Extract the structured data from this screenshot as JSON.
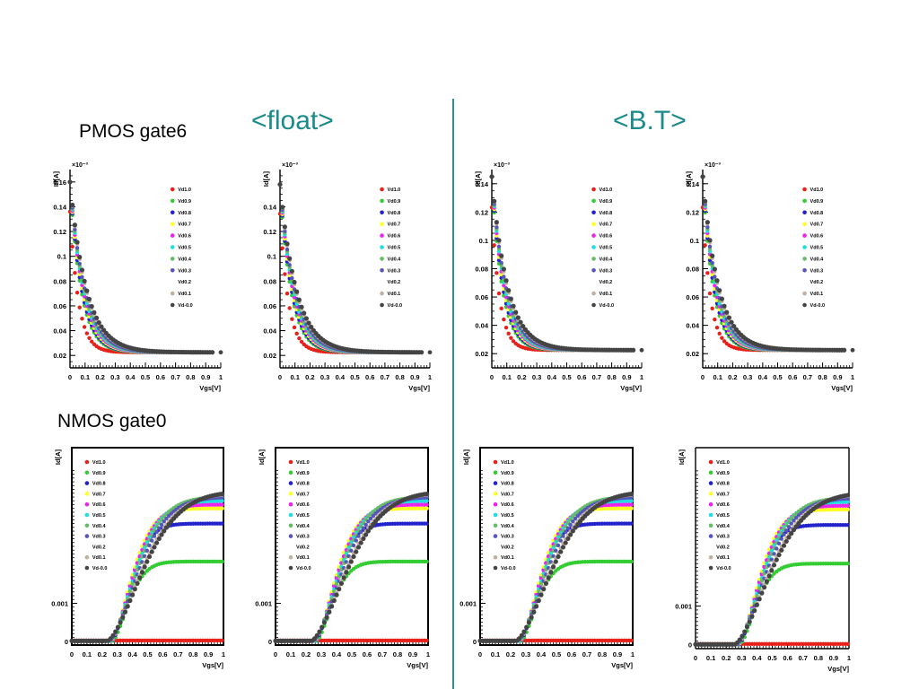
{
  "titles": {
    "left": "<float>",
    "right": "<B.T>"
  },
  "sections": {
    "pmos": "PMOS gate6",
    "nmos": "NMOS gate0"
  },
  "colors": {
    "title": "#1a8a8a",
    "divider": "#2e8f8f"
  },
  "chart_data": [
    {
      "id": "pmos-float-1",
      "type": "scatter",
      "device": "PMOS",
      "group": "<float>",
      "xlabel": "Vgs[V]",
      "ylabel": "Id[A]",
      "exponent": "×10⁻³",
      "xlim": [
        0,
        1
      ],
      "ylim": [
        0.01,
        0.17
      ],
      "xticks": [
        "0",
        "0.1",
        "0.2",
        "0.3",
        "0.4",
        "0.5",
        "0.6",
        "0.7",
        "0.8",
        "0.9",
        "1"
      ],
      "yticks": [
        "0.02",
        "0.04",
        "0.06",
        "0.08",
        "0.1",
        "0.12",
        "0.14",
        "0.16"
      ],
      "ytick_values": [
        0.02,
        0.04,
        0.06,
        0.08,
        0.1,
        0.12,
        0.14,
        0.16
      ],
      "legend": [
        "Vd1.0",
        "Vd0.9",
        "Vd0.8",
        "Vd0.7",
        "Vd0.6",
        "Vd0.5",
        "Vd0.4",
        "Vd0.3",
        "Vd0.2",
        "Vd0.1",
        "Vd-0.0"
      ],
      "legend_position": "top-right",
      "frame": false,
      "series_colors": [
        "#e8201a",
        "#33cc33",
        "#2222cc",
        "#ffff22",
        "#ee22ee",
        "#22dddd",
        "#66bb66",
        "#5555bb",
        "#ffffff",
        "#c0b0a0",
        "#444444"
      ],
      "curve": {
        "model": "pmos",
        "floor": 0.0225,
        "peak": 0.16,
        "tau": 0.07,
        "vstart": 0,
        "vend": 0.95,
        "extra_end_point": 1.0
      }
    },
    {
      "id": "pmos-float-2",
      "type": "scatter",
      "device": "PMOS",
      "group": "<float>",
      "xlabel": "Vgs[V]",
      "ylabel": "Id[A]",
      "exponent": "×10⁻³",
      "xlim": [
        0,
        1
      ],
      "ylim": [
        0.01,
        0.17
      ],
      "xticks": [
        "0",
        "0.1",
        "0.2",
        "0.3",
        "0.4",
        "0.5",
        "0.6",
        "0.7",
        "0.8",
        "0.9",
        "1"
      ],
      "yticks": [
        "0.02",
        "0.04",
        "0.06",
        "0.08",
        "0.1",
        "0.12",
        "0.14"
      ],
      "ytick_values": [
        0.02,
        0.04,
        0.06,
        0.08,
        0.1,
        0.12,
        0.14
      ],
      "legend": [
        "Vd1.0",
        "Vd0.9",
        "Vd0.8",
        "Vd0.7",
        "Vd0.6",
        "Vd0.5",
        "Vd0.4",
        "Vd0.3",
        "Vd0.2",
        "Vd0.1",
        "Vd-0.0"
      ],
      "legend_position": "top-right",
      "frame": false,
      "series_colors": [
        "#e8201a",
        "#33cc33",
        "#2222cc",
        "#ffff22",
        "#ee22ee",
        "#22dddd",
        "#66bb66",
        "#5555bb",
        "#ffffff",
        "#c0b0a0",
        "#444444"
      ],
      "curve": {
        "model": "pmos",
        "floor": 0.0225,
        "peak": 0.158,
        "tau": 0.07,
        "vstart": 0,
        "vend": 0.95,
        "extra_end_point": 1.0
      }
    },
    {
      "id": "pmos-bt-1",
      "type": "scatter",
      "device": "PMOS",
      "group": "<B.T>",
      "xlabel": "Vgs[V]",
      "ylabel": "Id[A]",
      "exponent": "×10⁻³",
      "xlim": [
        0,
        1
      ],
      "ylim": [
        0.01,
        0.15
      ],
      "xticks": [
        "0",
        "0.1",
        "0.2",
        "0.3",
        "0.4",
        "0.5",
        "0.6",
        "0.7",
        "0.8",
        "0.9",
        "1"
      ],
      "yticks": [
        "0.02",
        "0.04",
        "0.06",
        "0.08",
        "0.1",
        "0.12",
        "0.14"
      ],
      "ytick_values": [
        0.02,
        0.04,
        0.06,
        0.08,
        0.1,
        0.12,
        0.14
      ],
      "legend": [
        "Vd1.0",
        "Vd0.9",
        "Vd0.8",
        "Vd0.7",
        "Vd0.6",
        "Vd0.5",
        "Vd0.4",
        "Vd0.3",
        "Vd0.2",
        "Vd0.1",
        "Vd-0.0"
      ],
      "legend_position": "top-right",
      "frame": false,
      "series_colors": [
        "#e8201a",
        "#33cc33",
        "#2222cc",
        "#ffff22",
        "#ee22ee",
        "#22dddd",
        "#66bb66",
        "#5555bb",
        "#ffffff",
        "#c0b0a0",
        "#444444"
      ],
      "curve": {
        "model": "pmos",
        "floor": 0.0225,
        "peak": 0.145,
        "tau": 0.065,
        "vstart": 0,
        "vend": 0.95,
        "extra_end_point": 1.0
      }
    },
    {
      "id": "pmos-bt-2",
      "type": "scatter",
      "device": "PMOS",
      "group": "<B.T>",
      "xlabel": "Vgs[V]",
      "ylabel": "Id[A]",
      "exponent": "×10⁻³",
      "xlim": [
        0,
        1
      ],
      "ylim": [
        0.01,
        0.15
      ],
      "xticks": [
        "0",
        "0.1",
        "0.2",
        "0.3",
        "0.4",
        "0.5",
        "0.6",
        "0.7",
        "0.8",
        "0.9",
        "1"
      ],
      "yticks": [
        "0.02",
        "0.04",
        "0.06",
        "0.08",
        "0.1",
        "0.12",
        "0.14"
      ],
      "ytick_values": [
        0.02,
        0.04,
        0.06,
        0.08,
        0.1,
        0.12,
        0.14
      ],
      "legend": [
        "Vd1.0",
        "Vd0.9",
        "Vd0.8",
        "Vd0.7",
        "Vd0.6",
        "Vd0.5",
        "Vd0.4",
        "Vd0.3",
        "Vd0.2",
        "Vd0.1",
        "Vd-0.0"
      ],
      "legend_position": "top-right",
      "frame": false,
      "series_colors": [
        "#e8201a",
        "#33cc33",
        "#2222cc",
        "#ffff22",
        "#ee22ee",
        "#22dddd",
        "#66bb66",
        "#5555bb",
        "#ffffff",
        "#c0b0a0",
        "#444444"
      ],
      "curve": {
        "model": "pmos",
        "floor": 0.0225,
        "peak": 0.145,
        "tau": 0.065,
        "vstart": 0,
        "vend": 0.95,
        "extra_end_point": 1.0
      }
    },
    {
      "id": "nmos-float-1",
      "type": "scatter",
      "device": "NMOS",
      "group": "<float>",
      "xlabel": "Vgs[V]",
      "ylabel": "Id[A]",
      "xlim": [
        0,
        1
      ],
      "ylim": [
        -0.0001,
        0.0051
      ],
      "xticks": [
        "0",
        "0.1",
        "0.2",
        "0.3",
        "0.4",
        "0.5",
        "0.6",
        "0.7",
        "0.8",
        "0.9",
        "1"
      ],
      "yticks": [
        "0",
        "0.001"
      ],
      "ytick_values": [
        0,
        0.001
      ],
      "legend": [
        "Vd1.0",
        "Vd0.9",
        "Vd0.8",
        "Vd0.7",
        "Vd0.6",
        "Vd0.5",
        "Vd0.4",
        "Vd0.3",
        "Vd0.2",
        "Vd0.1",
        "Vd-0.0"
      ],
      "legend_position": "top-left",
      "frame": true,
      "series_colors": [
        "#e8201a",
        "#33cc33",
        "#2222cc",
        "#ffff22",
        "#ee22ee",
        "#22dddd",
        "#66bb66",
        "#5555bb",
        "#ffffff",
        "#c0b0a0",
        "#444444"
      ],
      "curve": {
        "model": "nmos",
        "vth": 0.25,
        "vstart": 0,
        "vend": 1.0,
        "series_max": [
          0,
          0.0021,
          0.0031,
          0.0035,
          0.0036,
          0.0037,
          0.0038,
          0.0038,
          0,
          0.0039,
          0.00395
        ]
      }
    },
    {
      "id": "nmos-float-2",
      "type": "scatter",
      "device": "NMOS",
      "group": "<float>",
      "xlabel": "Vgs[V]",
      "ylabel": "Id[A]",
      "xlim": [
        0,
        1
      ],
      "ylim": [
        -0.0001,
        0.0051
      ],
      "xticks": [
        "0",
        "0.1",
        "0.2",
        "0.3",
        "0.4",
        "0.5",
        "0.6",
        "0.7",
        "0.8",
        "0.9",
        "1"
      ],
      "yticks": [
        "0",
        "0.001"
      ],
      "ytick_values": [
        0,
        0.001
      ],
      "legend": [
        "Vd1.0",
        "Vd0.9",
        "Vd0.8",
        "Vd0.7",
        "Vd0.6",
        "Vd0.5",
        "Vd0.4",
        "Vd0.3",
        "Vd0.2",
        "Vd0.1",
        "Vd-0.0"
      ],
      "legend_position": "top-left",
      "frame": true,
      "series_colors": [
        "#e8201a",
        "#33cc33",
        "#2222cc",
        "#ffff22",
        "#ee22ee",
        "#22dddd",
        "#66bb66",
        "#5555bb",
        "#ffffff",
        "#c0b0a0",
        "#444444"
      ],
      "curve": {
        "model": "nmos",
        "vth": 0.25,
        "vstart": 0,
        "vend": 1.0,
        "series_max": [
          0,
          0.0021,
          0.0031,
          0.0035,
          0.0036,
          0.0037,
          0.0038,
          0.0038,
          0,
          0.0039,
          0.00395
        ]
      }
    },
    {
      "id": "nmos-bt-1",
      "type": "scatter",
      "device": "NMOS",
      "group": "<B.T>",
      "xlabel": "Vgs[V]",
      "ylabel": "Id[A]",
      "xlim": [
        0,
        1
      ],
      "ylim": [
        -0.0001,
        0.0051
      ],
      "xticks": [
        "0",
        "0.1",
        "0.2",
        "0.3",
        "0.4",
        "0.5",
        "0.6",
        "0.7",
        "0.8",
        "0.9",
        "1"
      ],
      "yticks": [
        "0",
        "0.001"
      ],
      "ytick_values": [
        0,
        0.001
      ],
      "legend": [
        "Vd1.0",
        "Vd0.9",
        "Vd0.8",
        "Vd0.7",
        "Vd0.6",
        "Vd0.5",
        "Vd0.4",
        "Vd0.3",
        "Vd0.2",
        "Vd0.1",
        "Vd-0.0"
      ],
      "legend_position": "top-left",
      "frame": true,
      "series_colors": [
        "#e8201a",
        "#33cc33",
        "#2222cc",
        "#ffff22",
        "#ee22ee",
        "#22dddd",
        "#66bb66",
        "#5555bb",
        "#ffffff",
        "#c0b0a0",
        "#444444"
      ],
      "curve": {
        "model": "nmos",
        "vth": 0.25,
        "vstart": 0,
        "vend": 1.0,
        "series_max": [
          0,
          0.0021,
          0.0031,
          0.0035,
          0.0036,
          0.0037,
          0.0038,
          0.0038,
          0,
          0.0039,
          0.00395
        ]
      }
    },
    {
      "id": "nmos-bt-2",
      "type": "scatter",
      "device": "NMOS",
      "group": "<B.T>",
      "xlabel": "Vgs[V]",
      "ylabel": "Id[A]",
      "xlim": [
        0,
        1
      ],
      "ylim": [
        -0.0001,
        0.0051
      ],
      "xticks": [
        "0",
        "0.1",
        "0.2",
        "0.3",
        "0.4",
        "0.5",
        "0.6",
        "0.7",
        "0.8",
        "0.9",
        "1"
      ],
      "yticks": [
        "0",
        "0.001"
      ],
      "ytick_values": [
        0,
        0.001
      ],
      "legend": [
        "Vd1.0",
        "Vd0.9",
        "Vd0.8",
        "Vd0.7",
        "Vd0.6",
        "Vd0.5",
        "Vd0.4",
        "Vd0.3",
        "Vd0.2",
        "Vd0.1",
        "Vd-0.0"
      ],
      "legend_position": "top-left",
      "frame": false,
      "series_colors": [
        "#e8201a",
        "#33cc33",
        "#2222cc",
        "#ffff22",
        "#ee22ee",
        "#22dddd",
        "#66bb66",
        "#5555bb",
        "#ffffff",
        "#c0b0a0",
        "#444444"
      ],
      "curve": {
        "model": "nmos",
        "vth": 0.27,
        "vstart": 0,
        "vend": 1.0,
        "series_max": [
          0,
          0.0021,
          0.0031,
          0.0035,
          0.0036,
          0.0037,
          0.0038,
          0.0038,
          0,
          0.0039,
          0.00395
        ]
      }
    }
  ]
}
